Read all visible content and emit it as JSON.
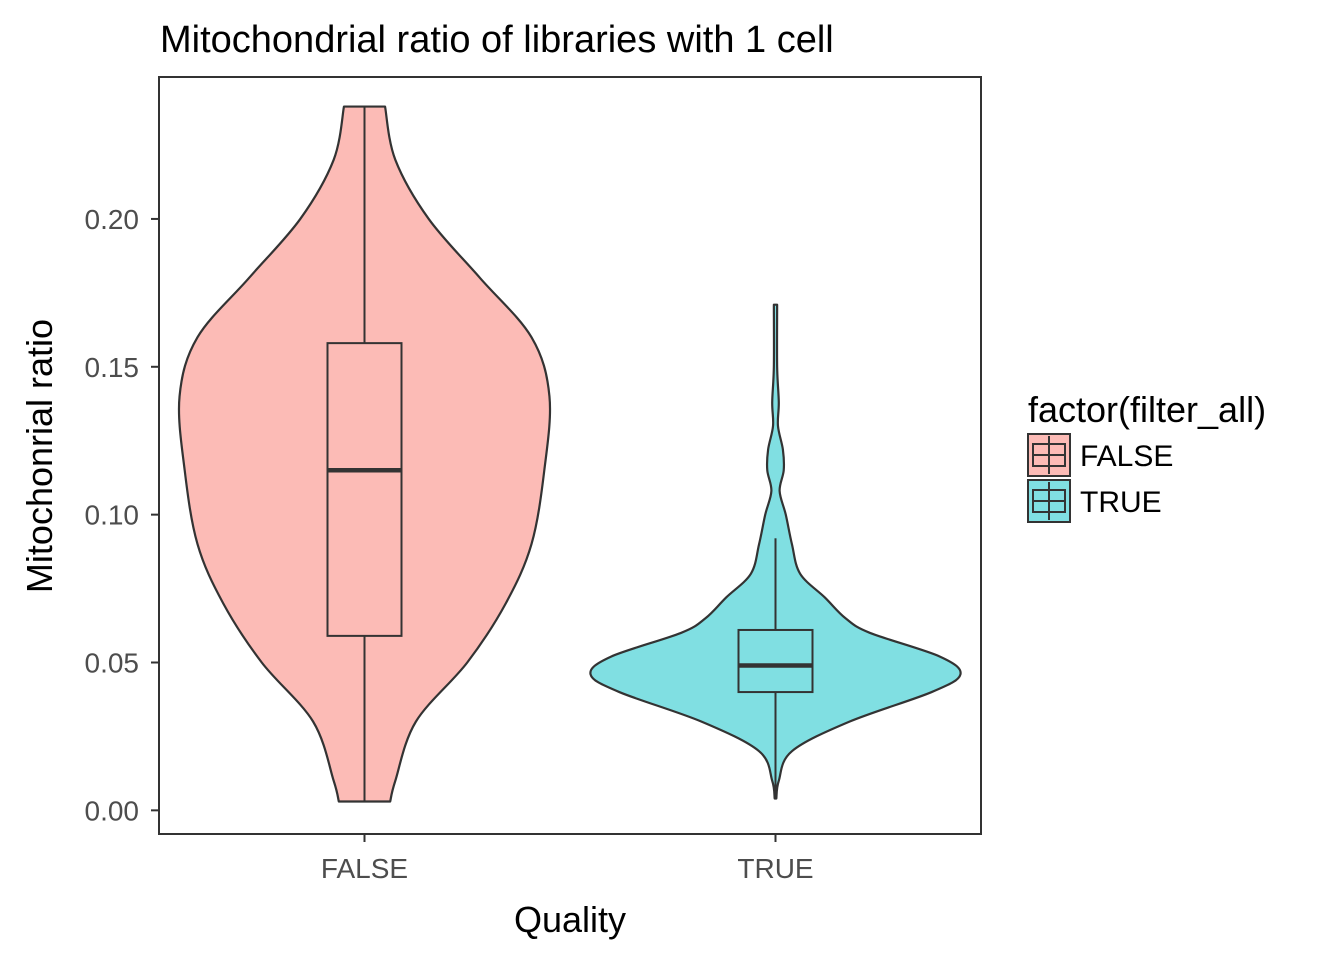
{
  "chart_data": {
    "type": "violin",
    "title": "Mitochondrial ratio of libraries with 1 cell",
    "xlabel": "Quality",
    "ylabel": "Mitochonrial ratio",
    "categories": [
      "FALSE",
      "TRUE"
    ],
    "ylim": [
      -0.008,
      0.248
    ],
    "yticks": [
      {
        "value": 0.0,
        "label": "0.00"
      },
      {
        "value": 0.05,
        "label": "0.05"
      },
      {
        "value": 0.1,
        "label": "0.10"
      },
      {
        "value": 0.15,
        "label": "0.15"
      },
      {
        "value": 0.2,
        "label": "0.20"
      }
    ],
    "grid": false,
    "legend": {
      "title": "factor(filter_all)",
      "position": "right",
      "entries": [
        {
          "label": "FALSE",
          "color": "#F8766D"
        },
        {
          "label": "TRUE",
          "color": "#00BFC4"
        }
      ]
    },
    "series": [
      {
        "name": "FALSE",
        "color": "#F8766D",
        "fill_alpha": 0.5,
        "violin_min": 0.003,
        "violin_max": 0.238,
        "box": {
          "lower_whisker": 0.003,
          "q1": 0.059,
          "median": 0.115,
          "q3": 0.158,
          "upper_whisker": 0.238
        },
        "density_profile": [
          [
            0.003,
            0.01
          ],
          [
            0.01,
            0.012
          ],
          [
            0.03,
            0.02
          ],
          [
            0.05,
            0.04
          ],
          [
            0.07,
            0.055
          ],
          [
            0.09,
            0.065
          ],
          [
            0.115,
            0.07
          ],
          [
            0.14,
            0.072
          ],
          [
            0.16,
            0.065
          ],
          [
            0.18,
            0.045
          ],
          [
            0.2,
            0.025
          ],
          [
            0.22,
            0.012
          ],
          [
            0.238,
            0.008
          ]
        ]
      },
      {
        "name": "TRUE",
        "color": "#00BFC4",
        "fill_alpha": 0.5,
        "violin_min": 0.004,
        "violin_max": 0.171,
        "box": {
          "lower_whisker": 0.004,
          "q1": 0.04,
          "median": 0.049,
          "q3": 0.061,
          "upper_whisker": 0.092
        },
        "density_profile": [
          [
            0.004,
            0.002
          ],
          [
            0.01,
            0.008
          ],
          [
            0.02,
            0.04
          ],
          [
            0.03,
            0.18
          ],
          [
            0.04,
            0.38
          ],
          [
            0.046,
            0.45
          ],
          [
            0.052,
            0.4
          ],
          [
            0.06,
            0.23
          ],
          [
            0.065,
            0.17
          ],
          [
            0.072,
            0.12
          ],
          [
            0.08,
            0.06
          ],
          [
            0.09,
            0.04
          ],
          [
            0.1,
            0.025
          ],
          [
            0.108,
            0.01
          ],
          [
            0.115,
            0.02
          ],
          [
            0.122,
            0.018
          ],
          [
            0.13,
            0.006
          ],
          [
            0.138,
            0.008
          ],
          [
            0.15,
            0.004
          ],
          [
            0.171,
            0.004
          ]
        ]
      }
    ]
  }
}
